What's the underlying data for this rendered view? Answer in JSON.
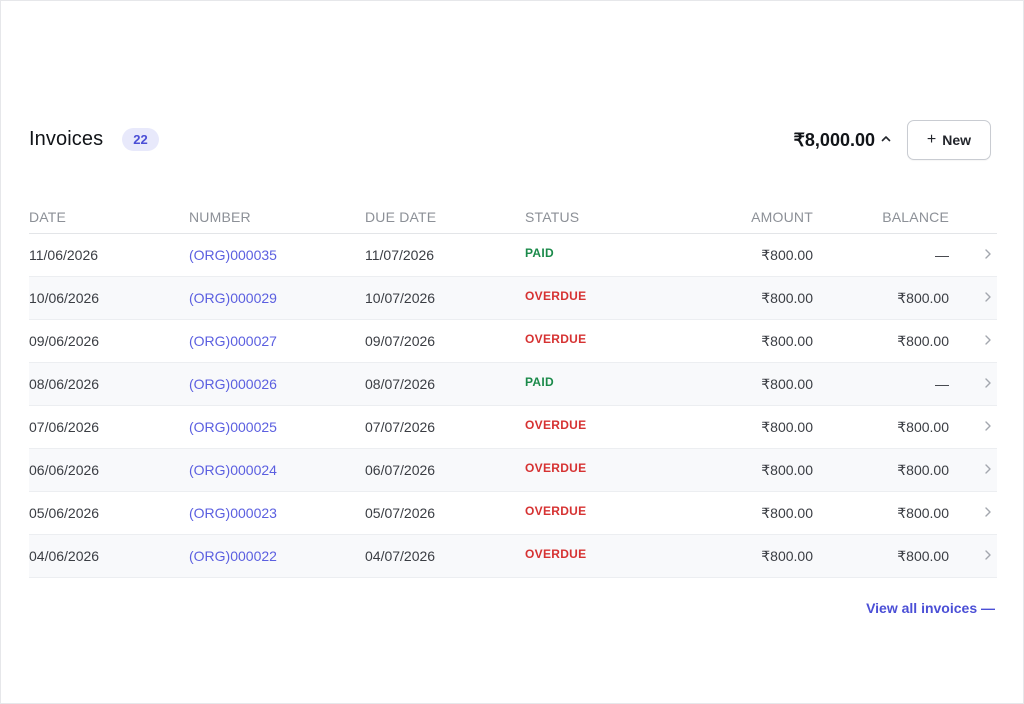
{
  "header": {
    "title": "Invoices",
    "count": "22",
    "total": "₹8,000.00",
    "new_label": "New"
  },
  "table": {
    "columns": [
      "DATE",
      "NUMBER",
      "DUE DATE",
      "STATUS",
      "AMOUNT",
      "BALANCE"
    ],
    "rows": [
      {
        "date": "11/06/2026",
        "number": "(ORG)000035",
        "due": "11/07/2026",
        "status": "PAID",
        "amount": "₹800.00",
        "balance": "—"
      },
      {
        "date": "10/06/2026",
        "number": "(ORG)000029",
        "due": "10/07/2026",
        "status": "OVERDUE",
        "amount": "₹800.00",
        "balance": "₹800.00"
      },
      {
        "date": "09/06/2026",
        "number": "(ORG)000027",
        "due": "09/07/2026",
        "status": "OVERDUE",
        "amount": "₹800.00",
        "balance": "₹800.00"
      },
      {
        "date": "08/06/2026",
        "number": "(ORG)000026",
        "due": "08/07/2026",
        "status": "PAID",
        "amount": "₹800.00",
        "balance": "—"
      },
      {
        "date": "07/06/2026",
        "number": "(ORG)000025",
        "due": "07/07/2026",
        "status": "OVERDUE",
        "amount": "₹800.00",
        "balance": "₹800.00"
      },
      {
        "date": "06/06/2026",
        "number": "(ORG)000024",
        "due": "06/07/2026",
        "status": "OVERDUE",
        "amount": "₹800.00",
        "balance": "₹800.00"
      },
      {
        "date": "05/06/2026",
        "number": "(ORG)000023",
        "due": "05/07/2026",
        "status": "OVERDUE",
        "amount": "₹800.00",
        "balance": "₹800.00"
      },
      {
        "date": "04/06/2026",
        "number": "(ORG)000022",
        "due": "04/07/2026",
        "status": "OVERDUE",
        "amount": "₹800.00",
        "balance": "₹800.00"
      }
    ]
  },
  "footer": {
    "view_all_label": "View all invoices —"
  },
  "colors": {
    "accent": "#4b4fd6",
    "paid": "#1b8a4a",
    "overdue": "#d63232"
  },
  "icons": {
    "total_toggle": "chevron-up-icon",
    "row_open": "chevron-right-icon",
    "new": "plus-icon"
  }
}
